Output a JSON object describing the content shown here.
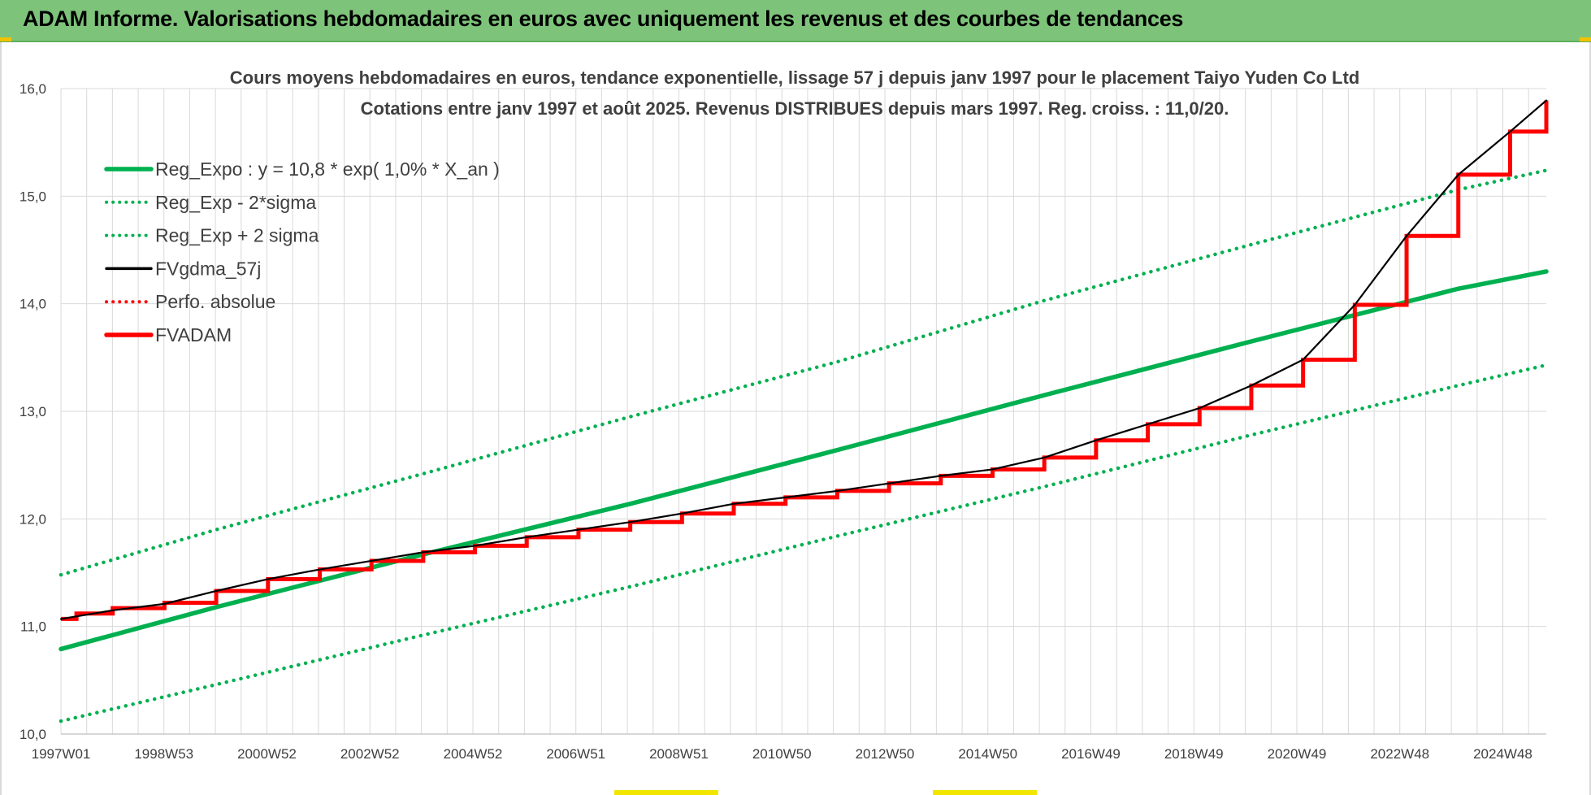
{
  "window": {
    "title": "ADAM Informe. Valorisations hebdomadaires en euros avec uniquement les revenus et des courbes de tendances"
  },
  "colors": {
    "banner": "#7dc47a",
    "green": "#00b050",
    "red": "#ff0000",
    "black": "#000000",
    "grid": "#d9d9d9"
  },
  "chart_data": {
    "type": "line",
    "title": "Cours moyens hebdomadaires en euros, tendance exponentielle, lissage 57 j depuis janv 1997 pour le placement Taiyo Yuden Co Ltd",
    "subtitle": "Cotations entre janv 1997 et août 2025.  Revenus DISTRIBUES depuis mars 1997. Reg. croiss. : 11,0/20.",
    "xlabel": "",
    "ylabel": "",
    "x_ticks": [
      "1997W01",
      "1998W53",
      "2000W52",
      "2002W52",
      "2004W52",
      "2006W51",
      "2008W51",
      "2010W50",
      "2012W50",
      "2014W50",
      "2016W49",
      "2018W49",
      "2020W49",
      "2022W48",
      "2024W48"
    ],
    "x_range": [
      "1997W01",
      "2025W35"
    ],
    "y_ticks": [
      "10,0",
      "11,0",
      "12,0",
      "13,0",
      "14,0",
      "15,0",
      "16,0"
    ],
    "ylim": [
      10.0,
      16.0
    ],
    "grid": true,
    "legend_position": "top-left",
    "series": [
      {
        "name": "Reg_Expo : y = 10,8 * exp( 1,0% *  X_an )",
        "style": "solid",
        "color": "#00b050",
        "x": [
          1997.0,
          2000.0,
          2004.0,
          2008.0,
          2012.0,
          2016.0,
          2020.0,
          2024.0,
          2025.7
        ],
        "y": [
          10.79,
          11.18,
          11.67,
          12.14,
          12.64,
          13.15,
          13.65,
          14.14,
          14.3
        ]
      },
      {
        "name": "Reg_Exp - 2*sigma",
        "style": "dotted",
        "color": "#00b050",
        "x": [
          1997.0,
          2000.0,
          2004.0,
          2008.0,
          2012.0,
          2016.0,
          2020.0,
          2024.0,
          2025.7
        ],
        "y": [
          10.12,
          10.46,
          10.92,
          11.37,
          11.84,
          12.3,
          12.78,
          13.24,
          13.43
        ]
      },
      {
        "name": "Reg_Exp + 2 sigma",
        "style": "dotted",
        "color": "#00b050",
        "x": [
          1997.0,
          2000.0,
          2004.0,
          2008.0,
          2012.0,
          2016.0,
          2020.0,
          2024.0,
          2025.7
        ],
        "y": [
          11.48,
          11.9,
          12.42,
          12.95,
          13.46,
          14.03,
          14.55,
          15.06,
          15.24
        ]
      },
      {
        "name": "FVgdma_57j",
        "style": "solid",
        "color": "#000000",
        "x": [
          1997.0,
          1998.0,
          1999.0,
          2000.0,
          2001.0,
          2002.0,
          2003.0,
          2004.0,
          2005.0,
          2006.0,
          2007.0,
          2008.0,
          2009.0,
          2010.0,
          2011.0,
          2012.0,
          2013.0,
          2014.0,
          2015.0,
          2016.0,
          2017.0,
          2018.0,
          2019.0,
          2020.0,
          2021.0,
          2022.0,
          2023.0,
          2024.0,
          2025.0,
          2025.7
        ],
        "y": [
          11.07,
          11.15,
          11.21,
          11.33,
          11.44,
          11.53,
          11.61,
          11.69,
          11.75,
          11.83,
          11.9,
          11.97,
          12.05,
          12.14,
          12.2,
          12.26,
          12.33,
          12.4,
          12.46,
          12.57,
          12.73,
          12.88,
          13.03,
          13.24,
          13.48,
          13.99,
          14.63,
          15.2,
          15.6,
          15.89
        ]
      },
      {
        "name": "Perfo. absolue",
        "style": "dotted",
        "color": "#ff0000",
        "x": [],
        "y": []
      },
      {
        "name": "FVADAM",
        "style": "step",
        "color": "#ff0000",
        "x": [
          1997.0,
          1997.3,
          1998.0,
          1999.0,
          2000.0,
          2001.0,
          2002.0,
          2003.0,
          2004.0,
          2005.0,
          2006.0,
          2007.0,
          2008.0,
          2009.0,
          2010.0,
          2011.0,
          2012.0,
          2013.0,
          2014.0,
          2015.0,
          2016.0,
          2017.0,
          2018.0,
          2019.0,
          2020.0,
          2021.0,
          2022.0,
          2023.0,
          2024.0,
          2025.0,
          2025.7
        ],
        "y": [
          11.07,
          11.12,
          11.17,
          11.22,
          11.33,
          11.44,
          11.53,
          11.61,
          11.69,
          11.75,
          11.83,
          11.9,
          11.97,
          12.05,
          12.14,
          12.2,
          12.26,
          12.33,
          12.4,
          12.46,
          12.57,
          12.73,
          12.88,
          13.03,
          13.24,
          13.48,
          13.99,
          14.63,
          15.2,
          15.6,
          15.89
        ]
      }
    ]
  }
}
